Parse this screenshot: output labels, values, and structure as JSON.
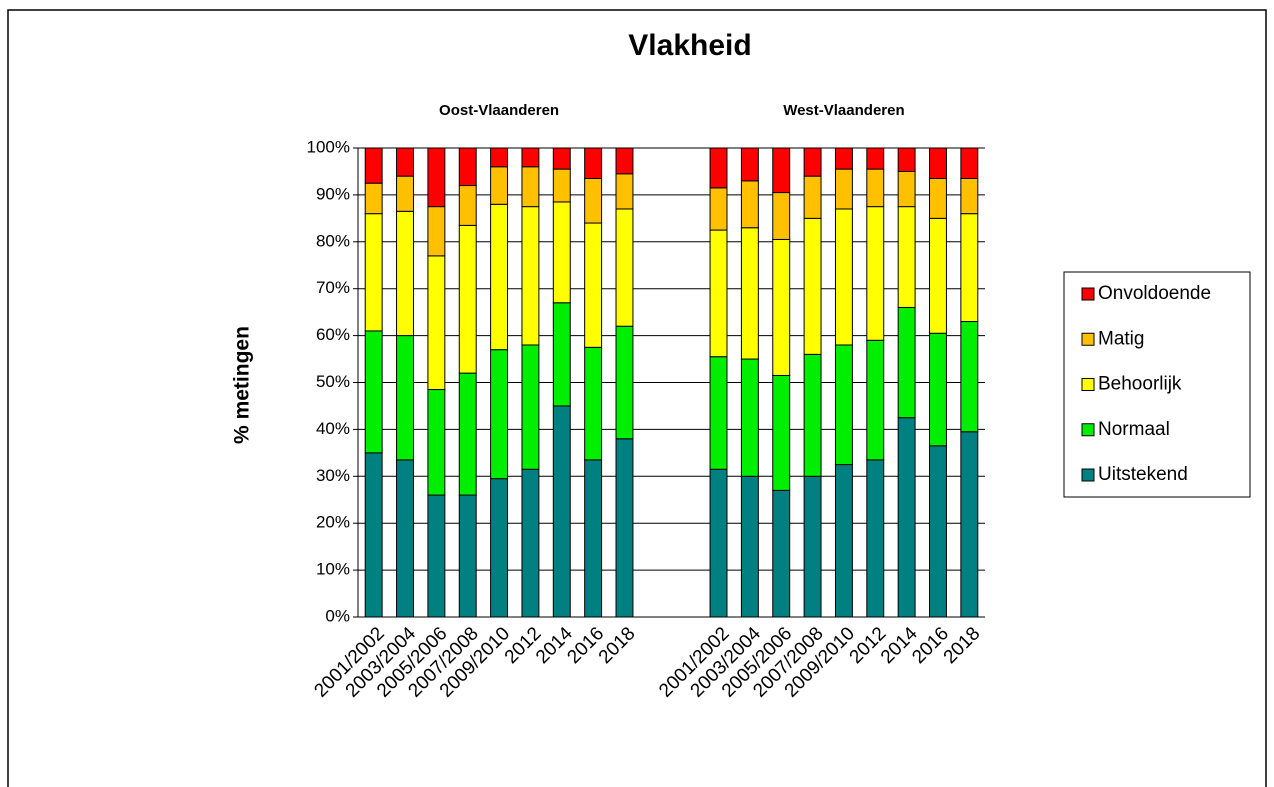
{
  "chart_data": {
    "type": "stacked_bar",
    "title": "Vlakheid",
    "annotations": [
      "Oost-Vlaanderen",
      "West-Vlaanderen"
    ],
    "y_label": "% metingen",
    "categories": [
      "2001/2002",
      "2003/2004",
      "2005/2006",
      "2007/2008",
      "2009/2010",
      "2012",
      "2014",
      "2016",
      "2018",
      null,
      null,
      "2001/2002",
      "2003/2004",
      "2005/2006",
      "2007/2008",
      "2009/2010",
      "2012",
      "2014",
      "2016",
      "2018"
    ],
    "series": [
      {
        "name": "Uitstekend",
        "color": "#008080",
        "values": [
          35,
          33.5,
          26,
          26,
          29.5,
          31.5,
          45,
          33.5,
          38,
          null,
          null,
          31.5,
          30,
          27,
          30,
          32.5,
          33.5,
          42.5,
          36.5,
          39.5
        ]
      },
      {
        "name": "Normaal",
        "color": "#00ee00",
        "values": [
          26,
          26.5,
          22.5,
          26,
          27.5,
          26.5,
          22,
          24,
          24,
          null,
          null,
          24,
          25,
          24.5,
          26,
          25.5,
          25.5,
          23.5,
          24,
          23.5
        ]
      },
      {
        "name": "Behoorlijk",
        "color": "#ffff00",
        "values": [
          25,
          26.5,
          28.5,
          31.5,
          31,
          29.5,
          21.5,
          26.5,
          25,
          null,
          null,
          27,
          28,
          29,
          29,
          29,
          28.5,
          21.5,
          24.5,
          23
        ]
      },
      {
        "name": "Matig",
        "color": "#ffc000",
        "values": [
          6.5,
          7.5,
          10.5,
          8.5,
          8,
          8.5,
          7,
          9.5,
          7.5,
          null,
          null,
          9,
          10,
          10,
          9,
          8.5,
          8,
          7.5,
          8.5,
          7.5
        ]
      },
      {
        "name": "Onvoldoende",
        "color": "#ff0000",
        "values": [
          7.5,
          6,
          12.5,
          8,
          4,
          4,
          4.5,
          6.5,
          5.5,
          null,
          null,
          8.5,
          7,
          9.5,
          6,
          4.5,
          4.5,
          5,
          6.5,
          6.5
        ]
      }
    ],
    "ylim": [
      0,
      100
    ],
    "yticks": [
      {
        "value": 0,
        "label": "0%"
      },
      {
        "value": 10,
        "label": "10%"
      },
      {
        "value": 20,
        "label": "20%"
      },
      {
        "value": 30,
        "label": "30%"
      },
      {
        "value": 40,
        "label": "40%"
      },
      {
        "value": 50,
        "label": "50%"
      },
      {
        "value": 60,
        "label": "60%"
      },
      {
        "value": 70,
        "label": "70%"
      },
      {
        "value": 80,
        "label": "80%"
      },
      {
        "value": 90,
        "label": "90%"
      },
      {
        "value": 100,
        "label": "100%"
      }
    ],
    "grid": true,
    "legend": "right"
  }
}
